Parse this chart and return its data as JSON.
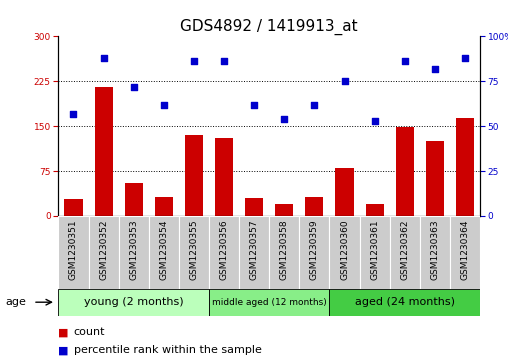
{
  "title": "GDS4892 / 1419913_at",
  "samples": [
    "GSM1230351",
    "GSM1230352",
    "GSM1230353",
    "GSM1230354",
    "GSM1230355",
    "GSM1230356",
    "GSM1230357",
    "GSM1230358",
    "GSM1230359",
    "GSM1230360",
    "GSM1230361",
    "GSM1230362",
    "GSM1230363",
    "GSM1230364"
  ],
  "counts": [
    28,
    215,
    55,
    32,
    135,
    130,
    30,
    20,
    32,
    80,
    20,
    148,
    125,
    163
  ],
  "percentile": [
    57,
    88,
    72,
    62,
    86,
    86,
    62,
    54,
    62,
    75,
    53,
    86,
    82,
    88
  ],
  "ylim_left": [
    0,
    300
  ],
  "ylim_right": [
    0,
    100
  ],
  "yticks_left": [
    0,
    75,
    150,
    225,
    300
  ],
  "yticks_right": [
    0,
    25,
    50,
    75,
    100
  ],
  "bar_color": "#cc0000",
  "dot_color": "#0000cc",
  "groups": [
    {
      "label": "young (2 months)",
      "start": 0,
      "end": 5,
      "color": "#bbffbb"
    },
    {
      "label": "middle aged (12 months)",
      "start": 5,
      "end": 9,
      "color": "#88ee88"
    },
    {
      "label": "aged (24 months)",
      "start": 9,
      "end": 14,
      "color": "#44cc44"
    }
  ],
  "age_label": "age",
  "legend_count_label": "count",
  "legend_pct_label": "percentile rank within the sample",
  "title_fontsize": 11,
  "tick_fontsize": 6.5,
  "label_fontsize": 8,
  "group_fontsize": 8,
  "group_fontsize_mid": 6.5
}
